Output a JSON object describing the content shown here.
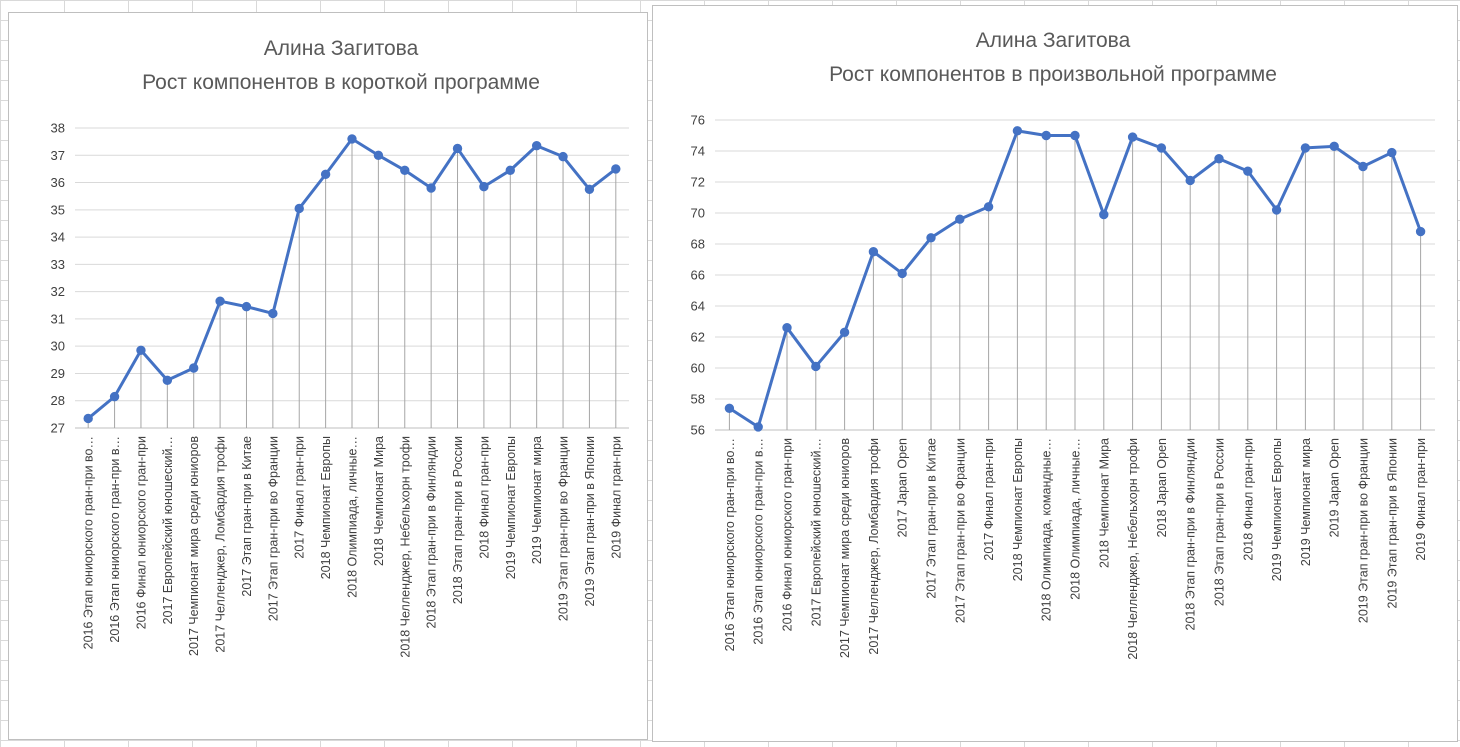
{
  "chart_data": [
    {
      "type": "line",
      "title": [
        "Алина Загитова",
        "Рост компонентов в короткой программе"
      ],
      "xlabel": "",
      "ylabel": "",
      "ylim": [
        27,
        38
      ],
      "yticks": [
        27,
        28,
        29,
        30,
        31,
        32,
        33,
        34,
        35,
        36,
        37,
        38
      ],
      "grid": true,
      "drop_lines": true,
      "legend": "none",
      "color": "#4472c4",
      "categories": [
        "2016 Этап юниорского гран-при во…",
        "2016 Этап юниорского гран-при в…",
        "2016 Финал юниорского гран-при",
        "2017 Европейский юношеский…",
        "2017 Чемпионат мира среди юниоров",
        "2017 Челленджер, Ломбардия трофи",
        "2017 Этап гран-при в Китае",
        "2017 Этап гран-при во Франции",
        "2017 Финал гран-при",
        "2018 Чемпионат Европы",
        "2018 Олимпиада, личные…",
        "2018 Чемпионат Мира",
        "2018 Челленджер, Небельхорн трофи",
        "2018 Этап гран-при в Финляндии",
        "2018 Этап гран-при в России",
        "2018 Финал гран-при",
        "2019 Чемпионат Европы",
        "2019 Чемпионат мира",
        "2019 Этап гран-при во Франции",
        "2019 Этап гран-при в Японии",
        "2019 Финал гран-при"
      ],
      "series": [
        {
          "values": [
            27.35,
            28.15,
            29.85,
            28.75,
            29.2,
            31.65,
            31.45,
            31.2,
            35.05,
            36.3,
            37.6,
            37.0,
            36.45,
            35.8,
            37.25,
            35.85,
            36.45,
            37.35,
            36.95,
            35.75,
            36.5
          ]
        }
      ]
    },
    {
      "type": "line",
      "title": [
        "Алина Загитова",
        "Рост компонентов в произвольной программе"
      ],
      "xlabel": "",
      "ylabel": "",
      "ylim": [
        56,
        76
      ],
      "yticks": [
        56,
        58,
        60,
        62,
        64,
        66,
        68,
        70,
        72,
        74,
        76
      ],
      "grid": true,
      "drop_lines": true,
      "legend": "none",
      "color": "#4472c4",
      "categories": [
        "2016 Этап юниорского гран-при во…",
        "2016 Этап юниорского гран-при в…",
        "2016 Финал юниорского гран-при",
        "2017 Европейский юношеский…",
        "2017 Чемпионат мира среди юниоров",
        "2017 Челленджер, Ломбардия трофи",
        "2017 Japan Open",
        "2017 Этап гран-при в Китае",
        "2017 Этап гран-при во Франции",
        "2017 Финал гран-при",
        "2018 Чемпионат Европы",
        "2018 Олимпиада, командные…",
        "2018 Олимпиада, личные…",
        "2018 Чемпионат Мира",
        "2018 Челленджер, Небельхорн трофи",
        "2018 Japan Open",
        "2018 Этап гран-при в Финляндии",
        "2018 Этап гран-при в России",
        "2018 Финал гран-при",
        "2019 Чемпионат Европы",
        "2019 Чемпионат мира",
        "2019 Japan Open",
        "2019 Этап гран-при во Франции",
        "2019 Этап гран-при в Японии",
        "2019 Финал гран-при"
      ],
      "series": [
        {
          "values": [
            57.4,
            56.2,
            62.6,
            60.1,
            62.3,
            67.5,
            66.1,
            68.4,
            69.6,
            70.4,
            75.3,
            75.0,
            75.0,
            69.9,
            74.9,
            74.2,
            72.1,
            73.5,
            72.7,
            70.2,
            74.2,
            74.3,
            73.0,
            73.9,
            68.8
          ]
        }
      ]
    }
  ]
}
